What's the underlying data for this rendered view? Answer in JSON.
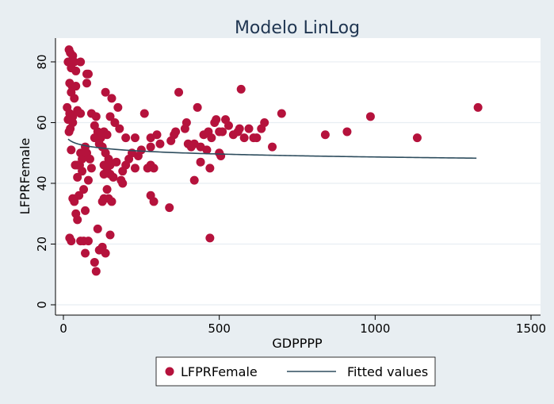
{
  "chart_data": {
    "type": "scatter",
    "title": "Modelo LinLog",
    "xlabel": "GDPPPP",
    "ylabel": "LFPRFemale",
    "xlim": [
      0,
      1500
    ],
    "ylim": [
      0,
      86
    ],
    "xticks": [
      0,
      500,
      1000,
      1500
    ],
    "yticks": [
      0,
      20,
      40,
      60,
      80
    ],
    "grid": "horizontal",
    "legend_position": "bottom",
    "colors": {
      "scatter": "#b5123c",
      "fitted": "#2e4d5e",
      "plot_bg": "#ffffff",
      "outer_bg": "#e8eef2",
      "grid": "#e8eef2"
    },
    "series": [
      {
        "name": "LFPRFemale",
        "type": "scatter",
        "points": [
          [
            15,
            80
          ],
          [
            18,
            84
          ],
          [
            22,
            83
          ],
          [
            30,
            82
          ],
          [
            35,
            80
          ],
          [
            25,
            78
          ],
          [
            40,
            77
          ],
          [
            55,
            80
          ],
          [
            75,
            76
          ],
          [
            80,
            76
          ],
          [
            20,
            73
          ],
          [
            28,
            72
          ],
          [
            40,
            72
          ],
          [
            75,
            73
          ],
          [
            25,
            70
          ],
          [
            35,
            68
          ],
          [
            12,
            65
          ],
          [
            20,
            63
          ],
          [
            30,
            62
          ],
          [
            45,
            64
          ],
          [
            15,
            61
          ],
          [
            22,
            58
          ],
          [
            30,
            60
          ],
          [
            18,
            57
          ],
          [
            55,
            63
          ],
          [
            90,
            63
          ],
          [
            105,
            62
          ],
          [
            25,
            51
          ],
          [
            45,
            46
          ],
          [
            38,
            46
          ],
          [
            55,
            50
          ],
          [
            60,
            48
          ],
          [
            52,
            46
          ],
          [
            70,
            52
          ],
          [
            75,
            50
          ],
          [
            85,
            48
          ],
          [
            90,
            45
          ],
          [
            60,
            44
          ],
          [
            45,
            42
          ],
          [
            50,
            36
          ],
          [
            35,
            34
          ],
          [
            30,
            35
          ],
          [
            40,
            30
          ],
          [
            45,
            28
          ],
          [
            65,
            38
          ],
          [
            70,
            31
          ],
          [
            80,
            41
          ],
          [
            55,
            21
          ],
          [
            65,
            21
          ],
          [
            80,
            21
          ],
          [
            20,
            22
          ],
          [
            25,
            21
          ],
          [
            70,
            17
          ],
          [
            110,
            25
          ],
          [
            115,
            18
          ],
          [
            125,
            19
          ],
          [
            100,
            14
          ],
          [
            105,
            11
          ],
          [
            135,
            17
          ],
          [
            150,
            23
          ],
          [
            135,
            70
          ],
          [
            155,
            68
          ],
          [
            175,
            65
          ],
          [
            150,
            62
          ],
          [
            165,
            60
          ],
          [
            180,
            58
          ],
          [
            100,
            59
          ],
          [
            110,
            57
          ],
          [
            120,
            55
          ],
          [
            130,
            57
          ],
          [
            140,
            56
          ],
          [
            100,
            55
          ],
          [
            115,
            53
          ],
          [
            125,
            52
          ],
          [
            135,
            50
          ],
          [
            145,
            48
          ],
          [
            130,
            46
          ],
          [
            150,
            46
          ],
          [
            170,
            47
          ],
          [
            140,
            44
          ],
          [
            130,
            43
          ],
          [
            150,
            43
          ],
          [
            160,
            42
          ],
          [
            185,
            41
          ],
          [
            190,
            40
          ],
          [
            140,
            38
          ],
          [
            130,
            35
          ],
          [
            145,
            35
          ],
          [
            125,
            34
          ],
          [
            155,
            34
          ],
          [
            200,
            55
          ],
          [
            230,
            55
          ],
          [
            260,
            63
          ],
          [
            280,
            55
          ],
          [
            300,
            56
          ],
          [
            310,
            53
          ],
          [
            280,
            52
          ],
          [
            250,
            51
          ],
          [
            220,
            50
          ],
          [
            240,
            49
          ],
          [
            210,
            48
          ],
          [
            200,
            46
          ],
          [
            190,
            44
          ],
          [
            230,
            45
          ],
          [
            280,
            46
          ],
          [
            270,
            45
          ],
          [
            290,
            45
          ],
          [
            280,
            36
          ],
          [
            290,
            34
          ],
          [
            340,
            32
          ],
          [
            345,
            54
          ],
          [
            355,
            56
          ],
          [
            360,
            57
          ],
          [
            370,
            70
          ],
          [
            390,
            58
          ],
          [
            395,
            60
          ],
          [
            400,
            53
          ],
          [
            410,
            52
          ],
          [
            420,
            53
          ],
          [
            430,
            65
          ],
          [
            440,
            52
          ],
          [
            450,
            56
          ],
          [
            460,
            51
          ],
          [
            465,
            57
          ],
          [
            475,
            55
          ],
          [
            485,
            60
          ],
          [
            490,
            61
          ],
          [
            500,
            57
          ],
          [
            510,
            57
          ],
          [
            520,
            61
          ],
          [
            530,
            59
          ],
          [
            545,
            56
          ],
          [
            560,
            57
          ],
          [
            570,
            71
          ],
          [
            565,
            58
          ],
          [
            580,
            55
          ],
          [
            595,
            58
          ],
          [
            610,
            55
          ],
          [
            620,
            55
          ],
          [
            635,
            58
          ],
          [
            645,
            60
          ],
          [
            670,
            52
          ],
          [
            700,
            63
          ],
          [
            500,
            50
          ],
          [
            505,
            49
          ],
          [
            440,
            47
          ],
          [
            470,
            45
          ],
          [
            420,
            41
          ],
          [
            470,
            22
          ],
          [
            840,
            56
          ],
          [
            910,
            57
          ],
          [
            985,
            62
          ],
          [
            1135,
            55
          ],
          [
            1330,
            65
          ]
        ]
      },
      {
        "name": "Fitted values",
        "type": "line",
        "model": {
          "a": 58.35,
          "b": -1.4
        },
        "x_range": [
          15,
          1325
        ]
      }
    ]
  }
}
